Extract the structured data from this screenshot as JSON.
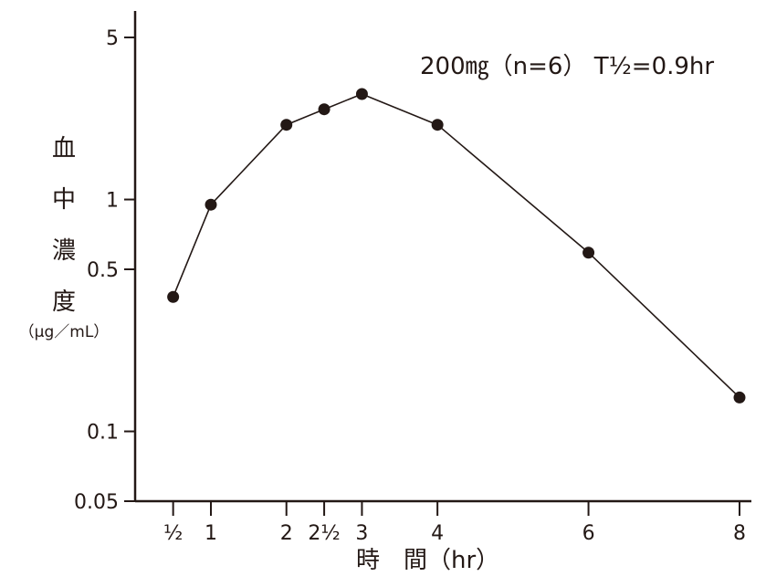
{
  "chart_data": {
    "type": "line",
    "annotation": "200㎎（n=6） T½=0.9hr",
    "ylabel_chars": [
      "血",
      "中",
      "濃",
      "度"
    ],
    "ylabel_unit": "（μg／mL）",
    "xlabel": "時　間（hr）",
    "yscale": "log",
    "ylim": [
      0.05,
      5.8
    ],
    "xlim": [
      0,
      8.1
    ],
    "y_ticks": [
      {
        "value": 5,
        "label": "5"
      },
      {
        "value": 1,
        "label": "1"
      },
      {
        "value": 0.5,
        "label": "0.5"
      },
      {
        "value": 0.1,
        "label": "0.1"
      },
      {
        "value": 0.05,
        "label": "0.05"
      }
    ],
    "x_ticks": [
      {
        "value": 0.5,
        "label": "½"
      },
      {
        "value": 1,
        "label": "1"
      },
      {
        "value": 2,
        "label": "2"
      },
      {
        "value": 2.5,
        "label": "2½"
      },
      {
        "value": 3,
        "label": "3"
      },
      {
        "value": 4,
        "label": "4"
      },
      {
        "value": 6,
        "label": "6"
      },
      {
        "value": 8,
        "label": "8"
      }
    ],
    "grid": false,
    "series": [
      {
        "x": [
          0.5,
          1,
          2,
          2.5,
          3,
          4,
          6,
          8
        ],
        "y": [
          0.38,
          0.95,
          2.1,
          2.45,
          2.85,
          2.1,
          0.59,
          0.14
        ]
      }
    ],
    "color": "#231815"
  }
}
